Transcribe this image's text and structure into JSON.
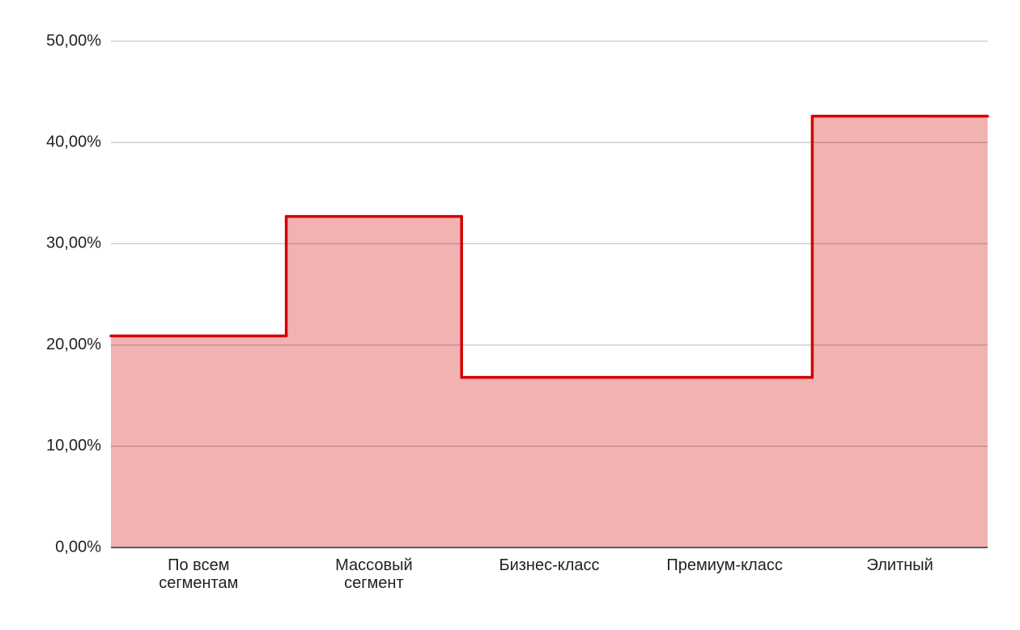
{
  "chart_data": {
    "type": "steppedArea",
    "categories": [
      "По всем сегментам",
      "Массовый сегмент",
      "Бизнес-класс",
      "Премиум-класс",
      "Элитный"
    ],
    "values": [
      20.9,
      32.7,
      16.8,
      16.8,
      42.6
    ],
    "color": "#d50000",
    "ylim": [
      0,
      50
    ],
    "yticks": [
      {
        "value": 0,
        "label": "0,00%"
      },
      {
        "value": 10,
        "label": "10,00%"
      },
      {
        "value": 20,
        "label": "20,00%"
      },
      {
        "value": 30,
        "label": "30,00%"
      },
      {
        "value": 40,
        "label": "40,00%"
      },
      {
        "value": 50,
        "label": "50,00%"
      }
    ],
    "grid": true
  }
}
